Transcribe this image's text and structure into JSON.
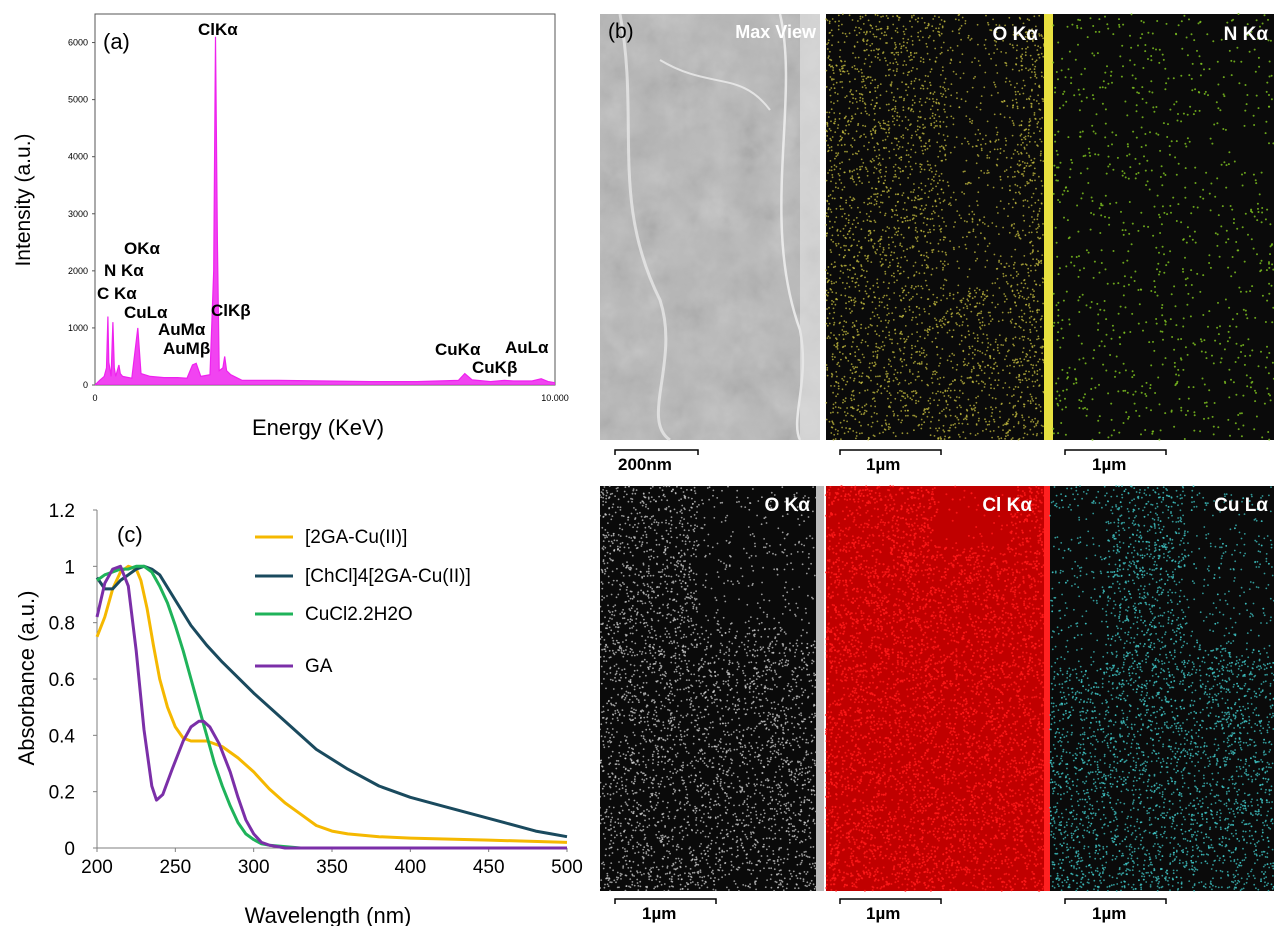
{
  "panel_a": {
    "label": "(a)",
    "xlabel": "Energy (KeV)",
    "ylabel": "Intensity (a.u.)",
    "xticks": [
      "0",
      "10.000"
    ],
    "yticks": [
      "0",
      "1000",
      "2000",
      "3000",
      "4000",
      "5000",
      "6000"
    ],
    "color": "#ee22ee",
    "peak_labels": [
      {
        "text": "ClKα",
        "energy": 2.6
      },
      {
        "text": "OKα",
        "energy": 0.52
      },
      {
        "text": "N Kα",
        "energy": 0.39
      },
      {
        "text": "C Kα",
        "energy": 0.28
      },
      {
        "text": "CuLα",
        "energy": 0.93
      },
      {
        "text": "AuMα",
        "energy": 2.12
      },
      {
        "text": "AuMβ",
        "energy": 2.2
      },
      {
        "text": "ClKβ",
        "energy": 2.82
      },
      {
        "text": "CuKα",
        "energy": 8.04
      },
      {
        "text": "CuKβ",
        "energy": 8.9
      },
      {
        "text": "AuLα",
        "energy": 9.7
      }
    ]
  },
  "panel_b": {
    "label": "(b)",
    "maps": [
      {
        "title": "Max View",
        "color": "#c8c8c8",
        "scale": "200nm"
      },
      {
        "title": "O Kα",
        "color": "#c8c040",
        "scale": "1µm"
      },
      {
        "title": "N Kα",
        "color": "#7cc020",
        "scale": "1µm"
      },
      {
        "title": "O Kα",
        "color": "#d8d8d8",
        "scale": "1µm"
      },
      {
        "title": "Cl Kα",
        "color": "#ff1a1a",
        "scale": "1µm"
      },
      {
        "title": "Cu Lα",
        "color": "#40c8c8",
        "scale": "1µm"
      }
    ]
  },
  "chart_data": [
    {
      "type": "line",
      "title": "",
      "xlabel": "Energy (KeV)",
      "ylabel": "Intensity (a.u.)",
      "xlim": [
        0,
        10
      ],
      "ylim": [
        0,
        6500
      ],
      "series": [
        {
          "x": [
            0,
            0.1,
            0.2,
            0.25,
            0.28,
            0.3,
            0.35,
            0.39,
            0.42,
            0.45,
            0.52,
            0.55,
            0.6,
            0.8,
            0.93,
            1.0,
            1.2,
            1.5,
            1.8,
            2.0,
            2.12,
            2.2,
            2.3,
            2.5,
            2.58,
            2.62,
            2.66,
            2.7,
            2.78,
            2.82,
            2.86,
            2.95,
            3.2,
            4,
            5,
            6,
            7,
            7.9,
            8.04,
            8.2,
            8.6,
            8.9,
            9.1,
            9.5,
            9.7,
            9.85,
            10
          ],
          "values": [
            0,
            80,
            150,
            300,
            1200,
            400,
            150,
            1100,
            300,
            150,
            350,
            200,
            150,
            120,
            1000,
            200,
            150,
            130,
            130,
            120,
            350,
            380,
            150,
            180,
            2000,
            6100,
            2500,
            250,
            300,
            500,
            250,
            180,
            80,
            80,
            70,
            60,
            60,
            80,
            200,
            90,
            60,
            80,
            70,
            70,
            110,
            60,
            40
          ]
        }
      ]
    },
    {
      "type": "line",
      "title": "",
      "xlabel": "Wavelength (nm)",
      "ylabel": "Absorbance (a.u.)",
      "xlim": [
        200,
        500
      ],
      "ylim": [
        0,
        1.2
      ],
      "xticks": [
        "200",
        "250",
        "300",
        "350",
        "400",
        "450",
        "500"
      ],
      "yticks": [
        "0",
        "0.2",
        "0.4",
        "0.6",
        "0.8",
        "1",
        "1.2"
      ],
      "grid": false,
      "legend_position": "top-right",
      "panel_label": "(c)",
      "series": [
        {
          "name": "[2GA-Cu(II)]",
          "color": "#f5b800",
          "x": [
            200,
            205,
            210,
            215,
            220,
            225,
            228,
            232,
            236,
            240,
            245,
            250,
            255,
            260,
            270,
            280,
            290,
            300,
            310,
            320,
            330,
            340,
            350,
            360,
            380,
            400,
            450,
            500
          ],
          "values": [
            0.75,
            0.82,
            0.92,
            0.98,
            1.0,
            0.99,
            0.95,
            0.85,
            0.72,
            0.6,
            0.5,
            0.43,
            0.39,
            0.38,
            0.38,
            0.36,
            0.32,
            0.27,
            0.21,
            0.16,
            0.12,
            0.08,
            0.06,
            0.05,
            0.04,
            0.035,
            0.028,
            0.02
          ]
        },
        {
          "name": "[ChCl]4[2GA-Cu(II)]",
          "color": "#1a4a5e",
          "x": [
            200,
            205,
            210,
            215,
            220,
            225,
            230,
            235,
            240,
            250,
            260,
            270,
            280,
            300,
            320,
            340,
            360,
            380,
            400,
            420,
            440,
            460,
            480,
            490,
            500
          ],
          "values": [
            0.96,
            0.92,
            0.92,
            0.95,
            0.97,
            0.99,
            1.0,
            0.99,
            0.97,
            0.88,
            0.79,
            0.72,
            0.66,
            0.55,
            0.45,
            0.35,
            0.28,
            0.22,
            0.18,
            0.15,
            0.12,
            0.09,
            0.06,
            0.05,
            0.04
          ]
        },
        {
          "name": "CuCl2.2H2O",
          "color": "#1fb35a",
          "x": [
            200,
            205,
            210,
            215,
            220,
            225,
            230,
            235,
            240,
            245,
            250,
            255,
            260,
            265,
            270,
            275,
            280,
            285,
            290,
            295,
            300,
            305,
            310,
            320,
            330,
            350,
            400,
            450,
            500
          ],
          "values": [
            0.95,
            0.97,
            0.98,
            0.99,
            0.99,
            1.0,
            1.0,
            0.98,
            0.93,
            0.87,
            0.79,
            0.7,
            0.6,
            0.5,
            0.4,
            0.3,
            0.22,
            0.15,
            0.09,
            0.05,
            0.03,
            0.015,
            0.01,
            0.005,
            0.0,
            0.0,
            0.0,
            0.0,
            0.0
          ]
        },
        {
          "name": "GA",
          "color": "#7b2fa8",
          "x": [
            200,
            205,
            210,
            215,
            220,
            225,
            230,
            235,
            238,
            242,
            248,
            255,
            260,
            265,
            268,
            272,
            278,
            285,
            290,
            295,
            300,
            305,
            310,
            320,
            330,
            350,
            400,
            450,
            500
          ],
          "values": [
            0.82,
            0.94,
            0.99,
            1.0,
            0.93,
            0.7,
            0.42,
            0.22,
            0.17,
            0.19,
            0.28,
            0.38,
            0.43,
            0.45,
            0.45,
            0.43,
            0.37,
            0.27,
            0.18,
            0.1,
            0.05,
            0.02,
            0.01,
            0.0,
            0.0,
            0.0,
            0.0,
            0.0,
            0.0
          ]
        }
      ]
    }
  ]
}
